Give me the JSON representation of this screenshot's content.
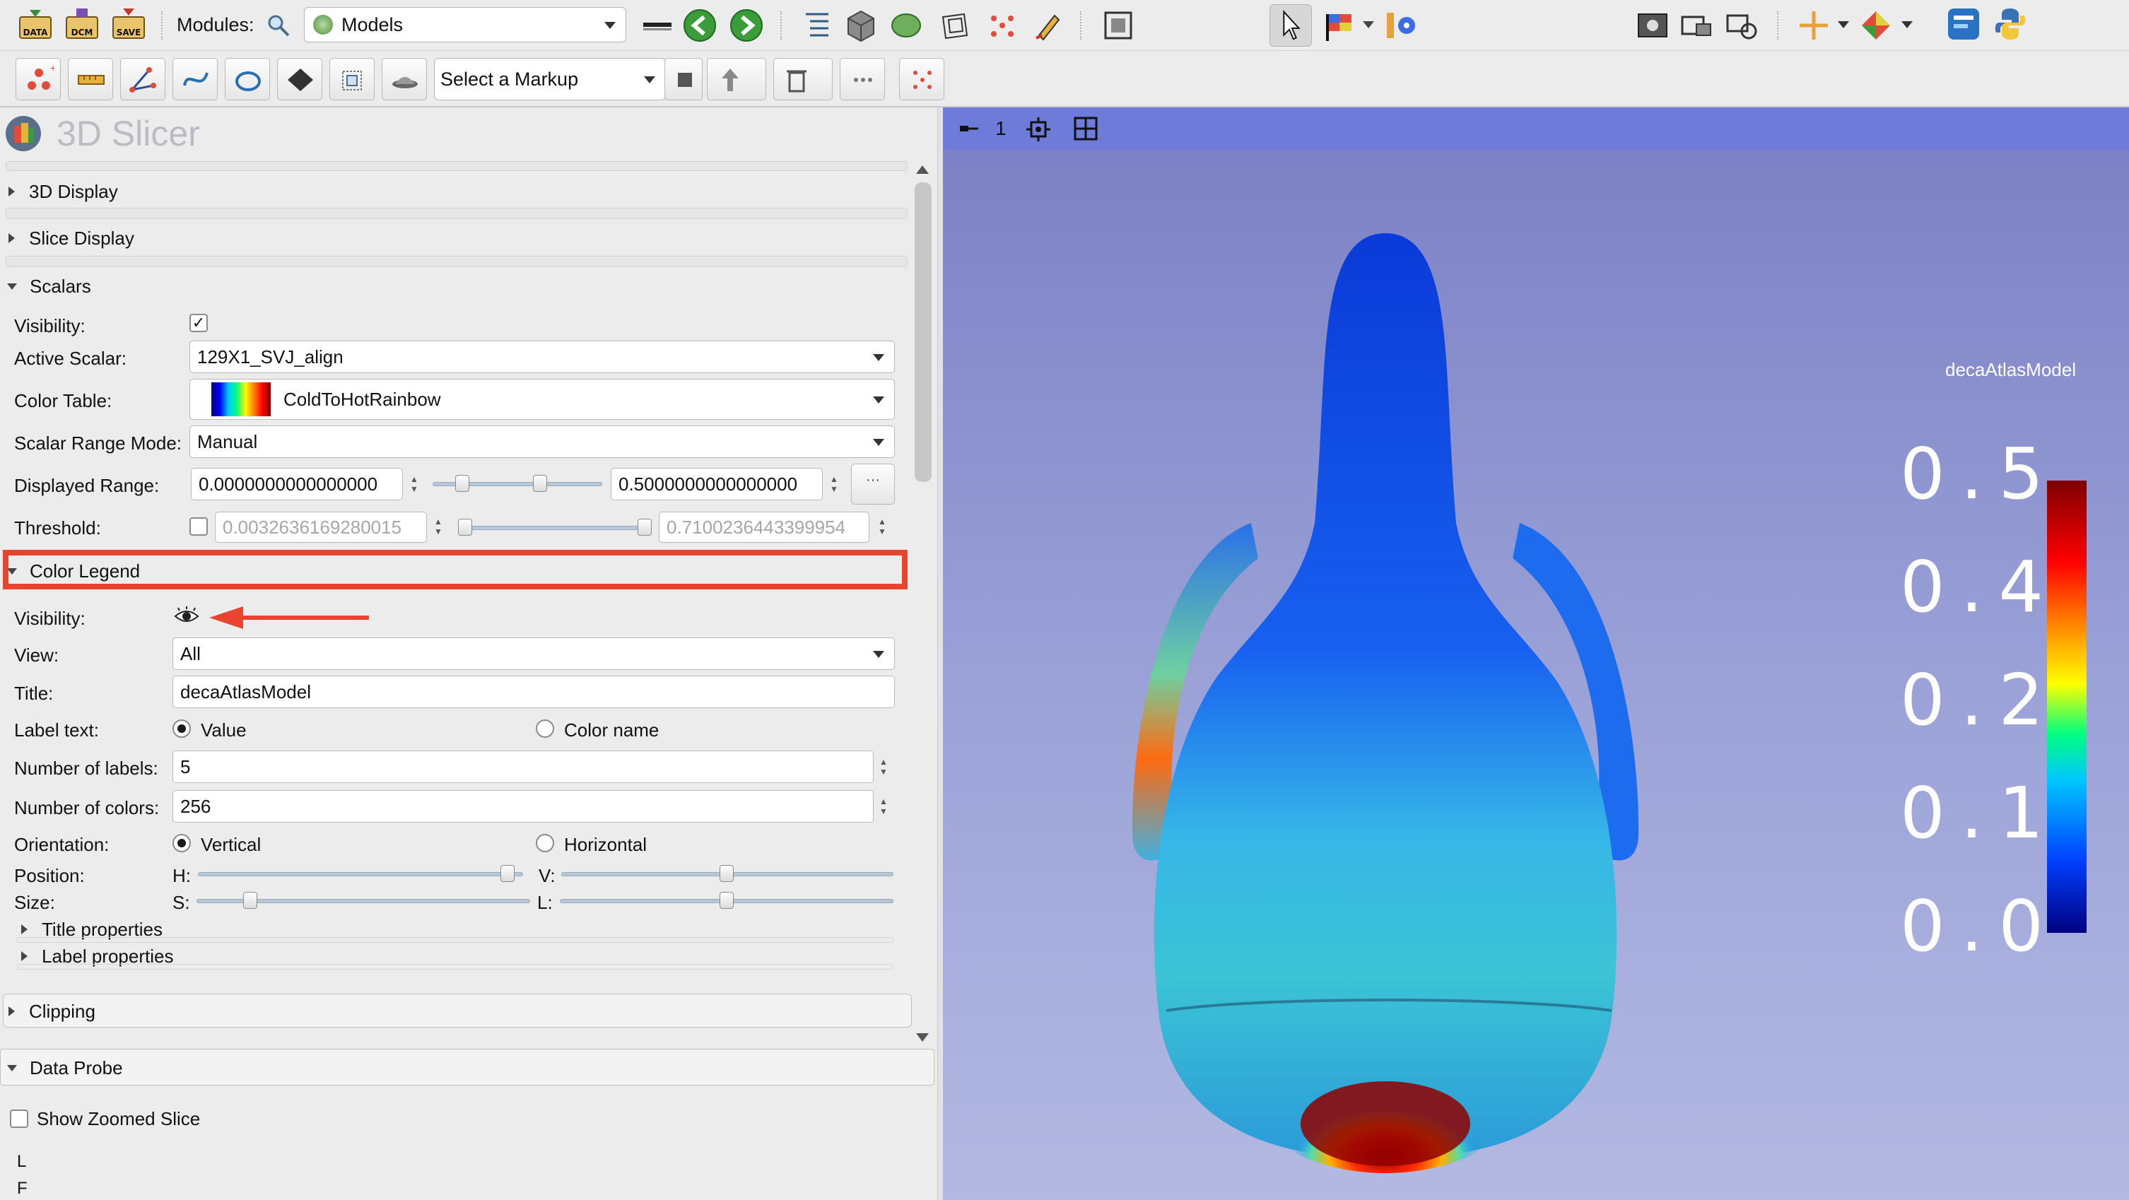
{
  "toolbar": {
    "modules_label": "Modules:",
    "module_selected": "Models",
    "data_label": "DATA",
    "dcm_label": "DCM",
    "save_label": "SAVE"
  },
  "markups_toolbar": {
    "select_markup": "Select a Markup"
  },
  "app": {
    "title": "3D Slicer"
  },
  "sections": {
    "display_3d": "3D Display",
    "slice_display": "Slice Display",
    "scalars": "Scalars",
    "color_legend": "Color Legend",
    "clipping": "Clipping",
    "data_probe": "Data Probe",
    "title_properties": "Title properties",
    "label_properties": "Label properties"
  },
  "scalars": {
    "visibility_label": "Visibility:",
    "visibility_checked": true,
    "active_scalar_label": "Active Scalar:",
    "active_scalar_value": "129X1_SVJ_align",
    "color_table_label": "Color Table:",
    "color_table_value": "ColdToHotRainbow",
    "range_mode_label": "Scalar Range Mode:",
    "range_mode_value": "Manual",
    "displayed_range_label": "Displayed Range:",
    "displayed_range_min": "0.0000000000000000",
    "displayed_range_max": "0.5000000000000000",
    "threshold_label": "Threshold:",
    "threshold_min": "0.0032636169280015",
    "threshold_max": "0.7100236443399954"
  },
  "color_legend": {
    "visibility_label": "Visibility:",
    "view_label": "View:",
    "view_value": "All",
    "title_label": "Title:",
    "title_value": "decaAtlasModel",
    "label_text_label": "Label text:",
    "label_text_opt1": "Value",
    "label_text_opt2": "Color name",
    "num_labels_label": "Number of labels:",
    "num_labels_value": "5",
    "num_colors_label": "Number of colors:",
    "num_colors_value": "256",
    "orientation_label": "Orientation:",
    "orientation_opt1": "Vertical",
    "orientation_opt2": "Horizontal",
    "position_label": "Position:",
    "position_h": "H:",
    "position_v": "V:",
    "size_label": "Size:",
    "size_s": "S:",
    "size_l": "L:"
  },
  "data_probe": {
    "show_zoomed_slice": "Show Zoomed Slice",
    "line1": "L",
    "line2": "F"
  },
  "view3d": {
    "view_number": "1",
    "legend_title": "decaAtlasModel",
    "legend_labels": [
      "0.5",
      "0.4",
      "0.2",
      "0.1",
      "0.0"
    ]
  },
  "colors": {
    "highlight_red": "#e8442f",
    "view_header": "#6f7bd8"
  }
}
